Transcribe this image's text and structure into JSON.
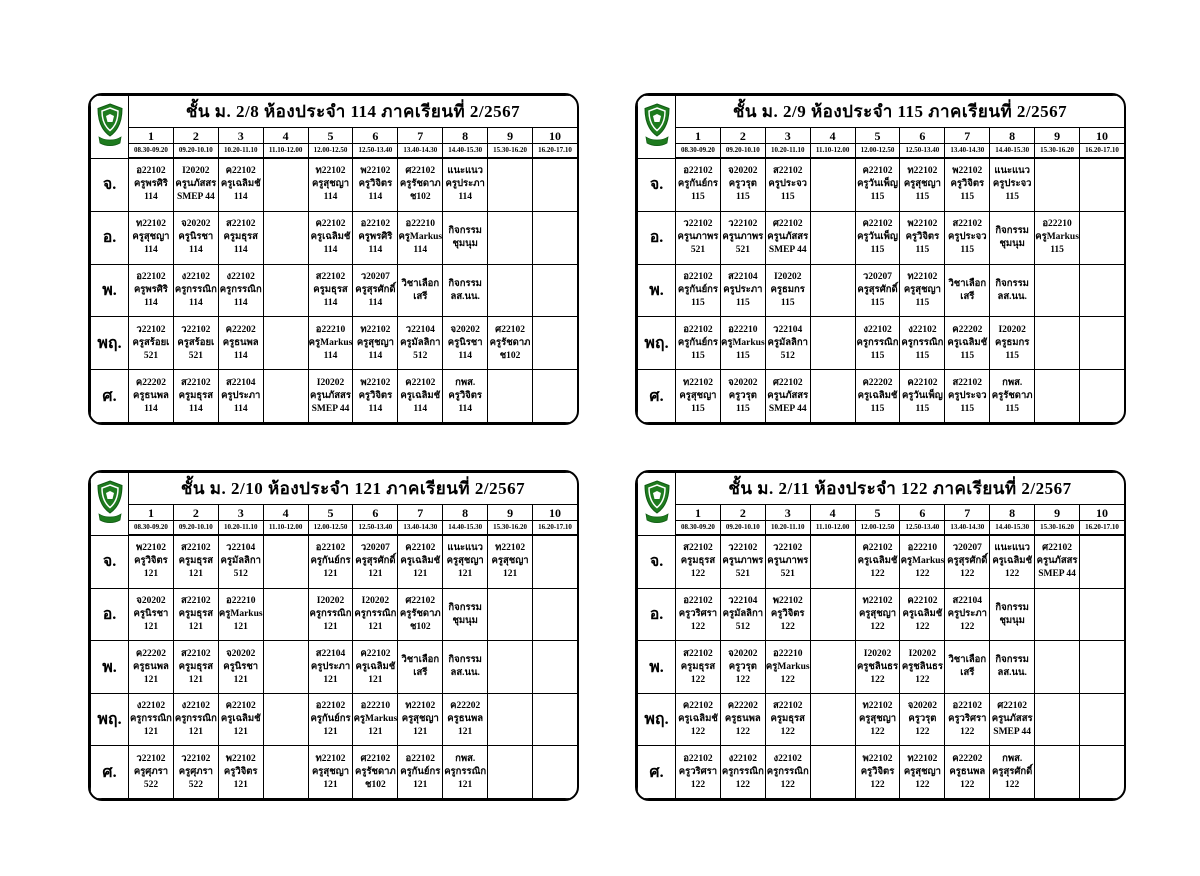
{
  "page": {
    "background": "#ffffff"
  },
  "colors": {
    "crest_green": "#1e7b1e",
    "crest_dark": "#0f5a12",
    "border": "#000000"
  },
  "icons": {
    "crest": "school-crest-icon"
  },
  "schedule": {
    "periods": [
      "1",
      "2",
      "3",
      "4",
      "5",
      "6",
      "7",
      "8",
      "9",
      "10"
    ],
    "times": [
      "08.30-09.20",
      "09.20-10.10",
      "10.20-11.10",
      "11.10-12.00",
      "12.00-12.50",
      "12.50-13.40",
      "13.40-14.30",
      "14.40-15.30",
      "15.30-16.20",
      "16.20-17.10"
    ],
    "day_labels": [
      "จ.",
      "อ.",
      "พ.",
      "พฤ.",
      "ศ."
    ],
    "tables": [
      {
        "title": "ชั้น ม. 2/8 ห้องประจำ 114 ภาคเรียนที่ 2/2567",
        "rows": [
          [
            [
              "อ22102",
              "ครูพรศิริ",
              "114"
            ],
            [
              "I20202",
              "ครูนภัสสร",
              "SMEP 44"
            ],
            [
              "ค22102",
              "ครูเฉลิมชั",
              "114"
            ],
            [],
            [
              "ท22102",
              "ครูสุชญา",
              "114"
            ],
            [
              "พ22102",
              "ครูวิจิตร",
              "114"
            ],
            [
              "ศ22102",
              "ครูรัชดาภ",
              "ช102"
            ],
            [
              "แนะแนว",
              "ครูประภา",
              "114"
            ],
            [],
            []
          ],
          [
            [
              "ท22102",
              "ครูสุชญา",
              "114"
            ],
            [
              "จ20202",
              "ครูนิรชา",
              "114"
            ],
            [
              "ส22102",
              "ครูมธุรส",
              "114"
            ],
            [],
            [
              "ค22102",
              "ครูเฉลิมชั",
              "114"
            ],
            [
              "อ22102",
              "ครูพรศิริ",
              "114"
            ],
            [
              "อ22210",
              "ครูMarkus",
              "114"
            ],
            [
              "กิจกรรม",
              "ชุมนุม"
            ],
            [],
            []
          ],
          [
            [
              "อ22102",
              "ครูพรศิริ",
              "114"
            ],
            [
              "ง22102",
              "ครูกรรณิก",
              "114"
            ],
            [
              "ง22102",
              "ครูกรรณิก",
              "114"
            ],
            [],
            [
              "ส22102",
              "ครูมธุรส",
              "114"
            ],
            [
              "ว20207",
              "ครูสุรศักดิ์",
              "114"
            ],
            [
              "วิชาเลือก",
              "เสรี"
            ],
            [
              "กิจกรรม",
              "ลส.นน."
            ],
            [],
            []
          ],
          [
            [
              "ว22102",
              "ครูสร้อยเ",
              "521"
            ],
            [
              "ว22102",
              "ครูสร้อยเ",
              "521"
            ],
            [
              "ค22202",
              "ครูธนพล",
              "114"
            ],
            [],
            [
              "อ22210",
              "ครูMarkus",
              "114"
            ],
            [
              "ท22102",
              "ครูสุชญา",
              "114"
            ],
            [
              "ว22104",
              "ครูมัลลิกา",
              "512"
            ],
            [
              "จ20202",
              "ครูนิรชา",
              "114"
            ],
            [
              "ศ22102",
              "ครูรัชดาภ",
              "ช102"
            ],
            []
          ],
          [
            [
              "ค22202",
              "ครูธนพล",
              "114"
            ],
            [
              "ส22102",
              "ครูมธุรส",
              "114"
            ],
            [
              "ส22104",
              "ครูประภา",
              "114"
            ],
            [],
            [
              "I20202",
              "ครูนภัสสร",
              "SMEP 44"
            ],
            [
              "พ22102",
              "ครูวิจิตร",
              "114"
            ],
            [
              "ค22102",
              "ครูเฉลิมชั",
              "114"
            ],
            [
              "กพส.",
              "ครูวิจิตร",
              "114"
            ],
            [],
            []
          ]
        ]
      },
      {
        "title": "ชั้น ม. 2/9 ห้องประจำ 115 ภาคเรียนที่ 2/2567",
        "rows": [
          [
            [
              "อ22102",
              "ครูกันย์กร",
              "115"
            ],
            [
              "จ20202",
              "ครูวรุต",
              "115"
            ],
            [
              "ส22102",
              "ครูประจว",
              "115"
            ],
            [],
            [
              "ค22102",
              "ครูวันเพ็ญ",
              "115"
            ],
            [
              "ท22102",
              "ครูสุชญา",
              "115"
            ],
            [
              "พ22102",
              "ครูวิจิตร",
              "115"
            ],
            [
              "แนะแนว",
              "ครูประจว",
              "115"
            ],
            [],
            []
          ],
          [
            [
              "ว22102",
              "ครูนภาพร",
              "521"
            ],
            [
              "ว22102",
              "ครูนภาพร",
              "521"
            ],
            [
              "ศ22102",
              "ครูนภัสสร",
              "SMEP 44"
            ],
            [],
            [
              "ค22102",
              "ครูวันเพ็ญ",
              "115"
            ],
            [
              "พ22102",
              "ครูวิจิตร",
              "115"
            ],
            [
              "ส22102",
              "ครูประจว",
              "115"
            ],
            [
              "กิจกรรม",
              "ชุมนุม"
            ],
            [
              "อ22210",
              "ครูMarkus",
              "115"
            ],
            []
          ],
          [
            [
              "อ22102",
              "ครูกันย์กร",
              "115"
            ],
            [
              "ส22104",
              "ครูประภา",
              "115"
            ],
            [
              "I20202",
              "ครูธมกร",
              "115"
            ],
            [],
            [
              "ว20207",
              "ครูสุรศักดิ์",
              "115"
            ],
            [
              "ท22102",
              "ครูสุชญา",
              "115"
            ],
            [
              "วิชาเลือก",
              "เสรี"
            ],
            [
              "กิจกรรม",
              "ลส.นน."
            ],
            [],
            []
          ],
          [
            [
              "อ22102",
              "ครูกันย์กร",
              "115"
            ],
            [
              "อ22210",
              "ครูMarkus",
              "115"
            ],
            [
              "ว22104",
              "ครูมัลลิกา",
              "512"
            ],
            [],
            [
              "ง22102",
              "ครูกรรณิก",
              "115"
            ],
            [
              "ง22102",
              "ครูกรรณิก",
              "115"
            ],
            [
              "ค22202",
              "ครูเฉลิมชั",
              "115"
            ],
            [
              "I20202",
              "ครูธมกร",
              "115"
            ],
            [],
            []
          ],
          [
            [
              "ท22102",
              "ครูสุชญา",
              "115"
            ],
            [
              "จ20202",
              "ครูวรุต",
              "115"
            ],
            [
              "ศ22102",
              "ครูนภัสสร",
              "SMEP 44"
            ],
            [],
            [
              "ค22202",
              "ครูเฉลิมชั",
              "115"
            ],
            [
              "ค22102",
              "ครูวันเพ็ญ",
              "115"
            ],
            [
              "ส22102",
              "ครูประจว",
              "115"
            ],
            [
              "กพส.",
              "ครูรัชดาภ",
              "115"
            ],
            [],
            []
          ]
        ]
      },
      {
        "title": "ชั้น ม. 2/10 ห้องประจำ 121 ภาคเรียนที่ 2/2567",
        "rows": [
          [
            [
              "พ22102",
              "ครูวิจิตร",
              "121"
            ],
            [
              "ส22102",
              "ครูมธุรส",
              "121"
            ],
            [
              "ว22104",
              "ครูมัลลิกา",
              "512"
            ],
            [],
            [
              "อ22102",
              "ครูกันย์กร",
              "121"
            ],
            [
              "ว20207",
              "ครูสุรศักดิ์",
              "121"
            ],
            [
              "ค22102",
              "ครูเฉลิมชั",
              "121"
            ],
            [
              "แนะแนว",
              "ครูสุชญา",
              "121"
            ],
            [
              "ท22102",
              "ครูสุชญา",
              "121"
            ],
            []
          ],
          [
            [
              "จ20202",
              "ครูนิรชา",
              "121"
            ],
            [
              "ส22102",
              "ครูมธุรส",
              "121"
            ],
            [
              "อ22210",
              "ครูMarkus",
              "121"
            ],
            [],
            [
              "I20202",
              "ครูกรรณิก",
              "121"
            ],
            [
              "I20202",
              "ครูกรรณิก",
              "121"
            ],
            [
              "ศ22102",
              "ครูรัชดาภ",
              "ช102"
            ],
            [
              "กิจกรรม",
              "ชุมนุม"
            ],
            [],
            []
          ],
          [
            [
              "ค22202",
              "ครูธนพล",
              "121"
            ],
            [
              "ส22102",
              "ครูมธุรส",
              "121"
            ],
            [
              "จ20202",
              "ครูนิรชา",
              "121"
            ],
            [],
            [
              "ส22104",
              "ครูประภา",
              "121"
            ],
            [
              "ค22102",
              "ครูเฉลิมชั",
              "121"
            ],
            [
              "วิชาเลือก",
              "เสรี"
            ],
            [
              "กิจกรรม",
              "ลส.นน."
            ],
            [],
            []
          ],
          [
            [
              "ง22102",
              "ครูกรรณิก",
              "121"
            ],
            [
              "ง22102",
              "ครูกรรณิก",
              "121"
            ],
            [
              "ค22102",
              "ครูเฉลิมชั",
              "121"
            ],
            [],
            [
              "อ22102",
              "ครูกันย์กร",
              "121"
            ],
            [
              "อ22210",
              "ครูMarkus",
              "121"
            ],
            [
              "ท22102",
              "ครูสุชญา",
              "121"
            ],
            [
              "ค22202",
              "ครูธนพล",
              "121"
            ],
            [],
            []
          ],
          [
            [
              "ว22102",
              "ครูศุภรา",
              "522"
            ],
            [
              "ว22102",
              "ครูศุภรา",
              "522"
            ],
            [
              "พ22102",
              "ครูวิจิตร",
              "121"
            ],
            [],
            [
              "ท22102",
              "ครูสุชญา",
              "121"
            ],
            [
              "ศ22102",
              "ครูรัชดาภ",
              "ช102"
            ],
            [
              "อ22102",
              "ครูกันย์กร",
              "121"
            ],
            [
              "กพส.",
              "ครูกรรณิก",
              "121"
            ],
            [],
            []
          ]
        ]
      },
      {
        "title": "ชั้น ม. 2/11 ห้องประจำ 122 ภาคเรียนที่ 2/2567",
        "rows": [
          [
            [
              "ส22102",
              "ครูมธุรส",
              "122"
            ],
            [
              "ว22102",
              "ครูนภาพร",
              "521"
            ],
            [
              "ว22102",
              "ครูนภาพร",
              "521"
            ],
            [],
            [
              "ค22102",
              "ครูเฉลิมชั",
              "122"
            ],
            [
              "อ22210",
              "ครูMarkus",
              "122"
            ],
            [
              "ว20207",
              "ครูสุรศักดิ์",
              "122"
            ],
            [
              "แนะแนว",
              "ครูเฉลิมชั",
              "122"
            ],
            [
              "ศ22102",
              "ครูนภัสสร",
              "SMEP 44"
            ],
            []
          ],
          [
            [
              "อ22102",
              "ครูวริศรา",
              "122"
            ],
            [
              "ว22104",
              "ครูมัลลิกา",
              "512"
            ],
            [
              "พ22102",
              "ครูวิจิตร",
              "122"
            ],
            [],
            [
              "ท22102",
              "ครูสุชญา",
              "122"
            ],
            [
              "ค22102",
              "ครูเฉลิมชั",
              "122"
            ],
            [
              "ส22104",
              "ครูประภา",
              "122"
            ],
            [
              "กิจกรรม",
              "ชุมนุม"
            ],
            [],
            []
          ],
          [
            [
              "ส22102",
              "ครูมธุรส",
              "122"
            ],
            [
              "จ20202",
              "ครูวรุต",
              "122"
            ],
            [
              "อ22210",
              "ครูMarkus",
              "122"
            ],
            [],
            [
              "I20202",
              "ครูชลินธร",
              "122"
            ],
            [
              "I20202",
              "ครูชลินธร",
              "122"
            ],
            [
              "วิชาเลือก",
              "เสรี"
            ],
            [
              "กิจกรรม",
              "ลส.นน."
            ],
            [],
            []
          ],
          [
            [
              "ค22102",
              "ครูเฉลิมชั",
              "122"
            ],
            [
              "ค22202",
              "ครูธนพล",
              "122"
            ],
            [
              "ส22102",
              "ครูมธุรส",
              "122"
            ],
            [],
            [
              "ท22102",
              "ครูสุชญา",
              "122"
            ],
            [
              "จ20202",
              "ครูวรุต",
              "122"
            ],
            [
              "อ22102",
              "ครูวริศรา",
              "122"
            ],
            [
              "ศ22102",
              "ครูนภัสสร",
              "SMEP 44"
            ],
            [],
            []
          ],
          [
            [
              "อ22102",
              "ครูวริศรา",
              "122"
            ],
            [
              "ง22102",
              "ครูกรรณิก",
              "122"
            ],
            [
              "ง22102",
              "ครูกรรณิก",
              "122"
            ],
            [],
            [
              "พ22102",
              "ครูวิจิตร",
              "122"
            ],
            [
              "ท22102",
              "ครูสุชญา",
              "122"
            ],
            [
              "ค22202",
              "ครูธนพล",
              "122"
            ],
            [
              "กพส.",
              "ครูสุรศักดิ์",
              "122"
            ],
            [],
            []
          ]
        ]
      }
    ]
  }
}
